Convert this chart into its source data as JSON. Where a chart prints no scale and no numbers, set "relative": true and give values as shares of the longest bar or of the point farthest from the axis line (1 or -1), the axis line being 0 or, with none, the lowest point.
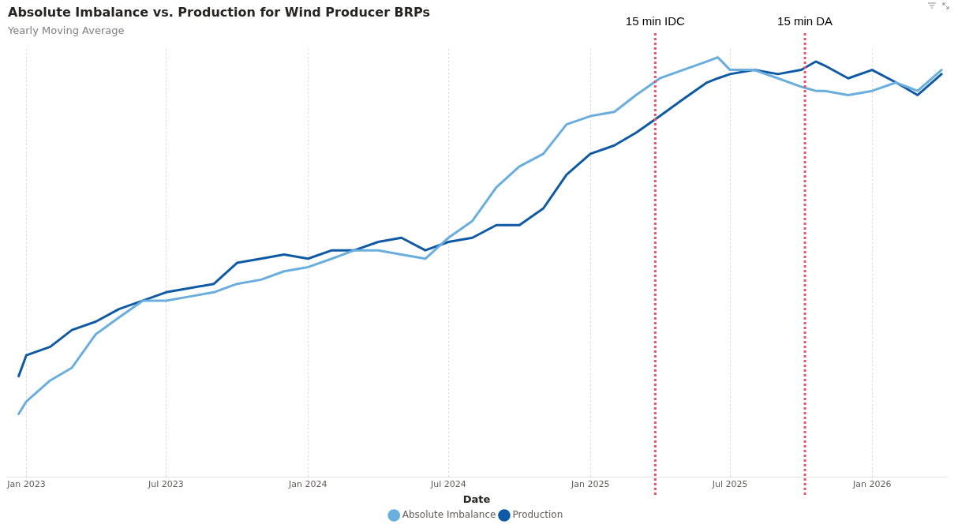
{
  "chart_data": {
    "type": "line",
    "title": "Absolute Imbalance vs. Production for Wind Producer BRPs",
    "subtitle": "Yearly Moving Average",
    "xlabel": "Date",
    "relative": true,
    "x": [
      "2022-12-22",
      "2023-01-01",
      "2023-02-01",
      "2023-03-01",
      "2023-04-01",
      "2023-05-01",
      "2023-06-01",
      "2023-07-01",
      "2023-08-01",
      "2023-09-01",
      "2023-10-01",
      "2023-11-01",
      "2023-12-01",
      "2024-01-01",
      "2024-02-01",
      "2024-03-01",
      "2024-04-01",
      "2024-05-01",
      "2024-06-01",
      "2024-07-01",
      "2024-08-01",
      "2024-09-01",
      "2024-10-01",
      "2024-11-01",
      "2024-12-01",
      "2025-01-01",
      "2025-02-01",
      "2025-03-01",
      "2025-04-01",
      "2025-05-01",
      "2025-06-01",
      "2025-06-15",
      "2025-07-01",
      "2025-08-01",
      "2025-09-01",
      "2025-10-01",
      "2025-10-20",
      "2025-11-01",
      "2025-12-01",
      "2026-01-01",
      "2026-02-01",
      "2026-03-01",
      "2026-04-01"
    ],
    "series": [
      {
        "name": "Absolute Imbalance",
        "color": "#6aaede",
        "values": [
          0.15,
          0.18,
          0.23,
          0.26,
          0.34,
          0.38,
          0.42,
          0.42,
          0.43,
          0.44,
          0.46,
          0.47,
          0.49,
          0.5,
          0.52,
          0.54,
          0.54,
          0.53,
          0.52,
          0.57,
          0.61,
          0.69,
          0.74,
          0.77,
          0.84,
          0.86,
          0.87,
          0.91,
          0.95,
          0.97,
          0.99,
          1,
          0.97,
          0.97,
          0.95,
          0.93,
          0.92,
          0.92,
          0.91,
          0.92,
          0.94,
          0.92,
          0.97
        ]
      },
      {
        "name": "Production",
        "color": "#0f5aa4",
        "values": [
          0.24,
          0.29,
          0.31,
          0.35,
          0.37,
          0.4,
          0.42,
          0.44,
          0.45,
          0.46,
          0.51,
          0.52,
          0.53,
          0.52,
          0.54,
          0.54,
          0.56,
          0.57,
          0.54,
          0.56,
          0.57,
          0.6,
          0.6,
          0.64,
          0.72,
          0.77,
          0.79,
          0.82,
          0.86,
          0.9,
          0.94,
          0.95,
          0.96,
          0.97,
          0.96,
          0.97,
          0.99,
          0.98,
          0.95,
          0.97,
          0.94,
          0.91,
          0.96
        ]
      }
    ],
    "xticks": [
      {
        "value": "2023-01-01",
        "label": "Jan 2023"
      },
      {
        "value": "2023-07-01",
        "label": "Jul 2023"
      },
      {
        "value": "2024-01-01",
        "label": "Jan 2024"
      },
      {
        "value": "2024-07-01",
        "label": "Jul 2024"
      },
      {
        "value": "2025-01-01",
        "label": "Jan 2025"
      },
      {
        "value": "2025-07-01",
        "label": "Jul 2025"
      },
      {
        "value": "2026-01-01",
        "label": "Jan 2026"
      }
    ],
    "xlim": [
      "2022-12-06",
      "2026-04-08"
    ],
    "ref_lines": [
      {
        "axis": "x",
        "value": "2025-03-26",
        "label": "15 min IDC",
        "color": "#e8536a",
        "line_style": "dotted"
      },
      {
        "axis": "x",
        "value": "2025-10-06",
        "label": "15 min DA",
        "color": "#e8536a",
        "line_style": "dotted"
      }
    ],
    "grid": "x",
    "legend": "bottom",
    "marker": "none",
    "line_style": "solid"
  }
}
